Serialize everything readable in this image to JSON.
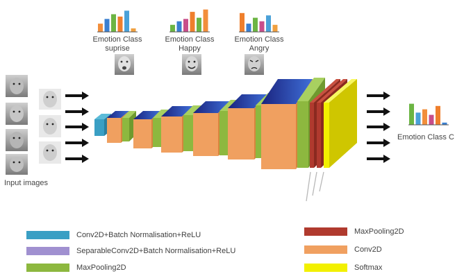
{
  "diagram": {
    "top_charts": [
      {
        "title": "Emotion Class",
        "label": "suprise",
        "values": [
          0.35,
          0.55,
          0.75,
          0.65,
          0.9,
          0.15
        ],
        "colors": [
          "#f28e3b",
          "#3a7fd0",
          "#6cb543",
          "#ef7f2c",
          "#4aa1d8",
          "#f0a040"
        ]
      },
      {
        "title": "Emotion Class",
        "label": "Happy",
        "values": [
          0.3,
          0.45,
          0.55,
          0.85,
          0.6,
          0.95
        ],
        "colors": [
          "#6cb543",
          "#3a7fd0",
          "#c84d8a",
          "#ef7f2c",
          "#6cb543",
          "#f28e3b"
        ]
      },
      {
        "title": "Emotion Class",
        "label": "Angry",
        "values": [
          0.8,
          0.35,
          0.6,
          0.45,
          0.7,
          0.3
        ],
        "colors": [
          "#ef7f2c",
          "#3a7fd0",
          "#6cb543",
          "#c84d8a",
          "#4aa1d8",
          "#f0a040"
        ]
      }
    ],
    "input_label": "Input images",
    "block_sizes": [
      "",
      "",
      "",
      "",
      "",
      "",
      "",
      "",
      "",
      "",
      "",
      ""
    ],
    "output_chart": {
      "title": "Emotion Class C",
      "values": [
        0.95,
        0.55,
        0.7,
        0.45,
        0.85,
        0.1
      ],
      "colors": [
        "#6cb543",
        "#4aa1d8",
        "#f28e3b",
        "#c84d8a",
        "#ef7f2c",
        "#3a7fd0"
      ]
    }
  },
  "legend": [
    {
      "label": "Conv2D+Batch Normalisation+ReLU",
      "color": "#3a9fc4"
    },
    {
      "label": "SeparableConv2D+Batch Normalisation+ReLU",
      "color": "#a090d0"
    },
    {
      "label": "MaxPooling2D",
      "color": "#8db83f"
    },
    {
      "label": "MaxPooling2D",
      "color": "#b03a2e"
    },
    {
      "label": "Conv2D",
      "color": "#f0a060"
    },
    {
      "label": "Softmax",
      "color": "#f2f000"
    }
  ]
}
